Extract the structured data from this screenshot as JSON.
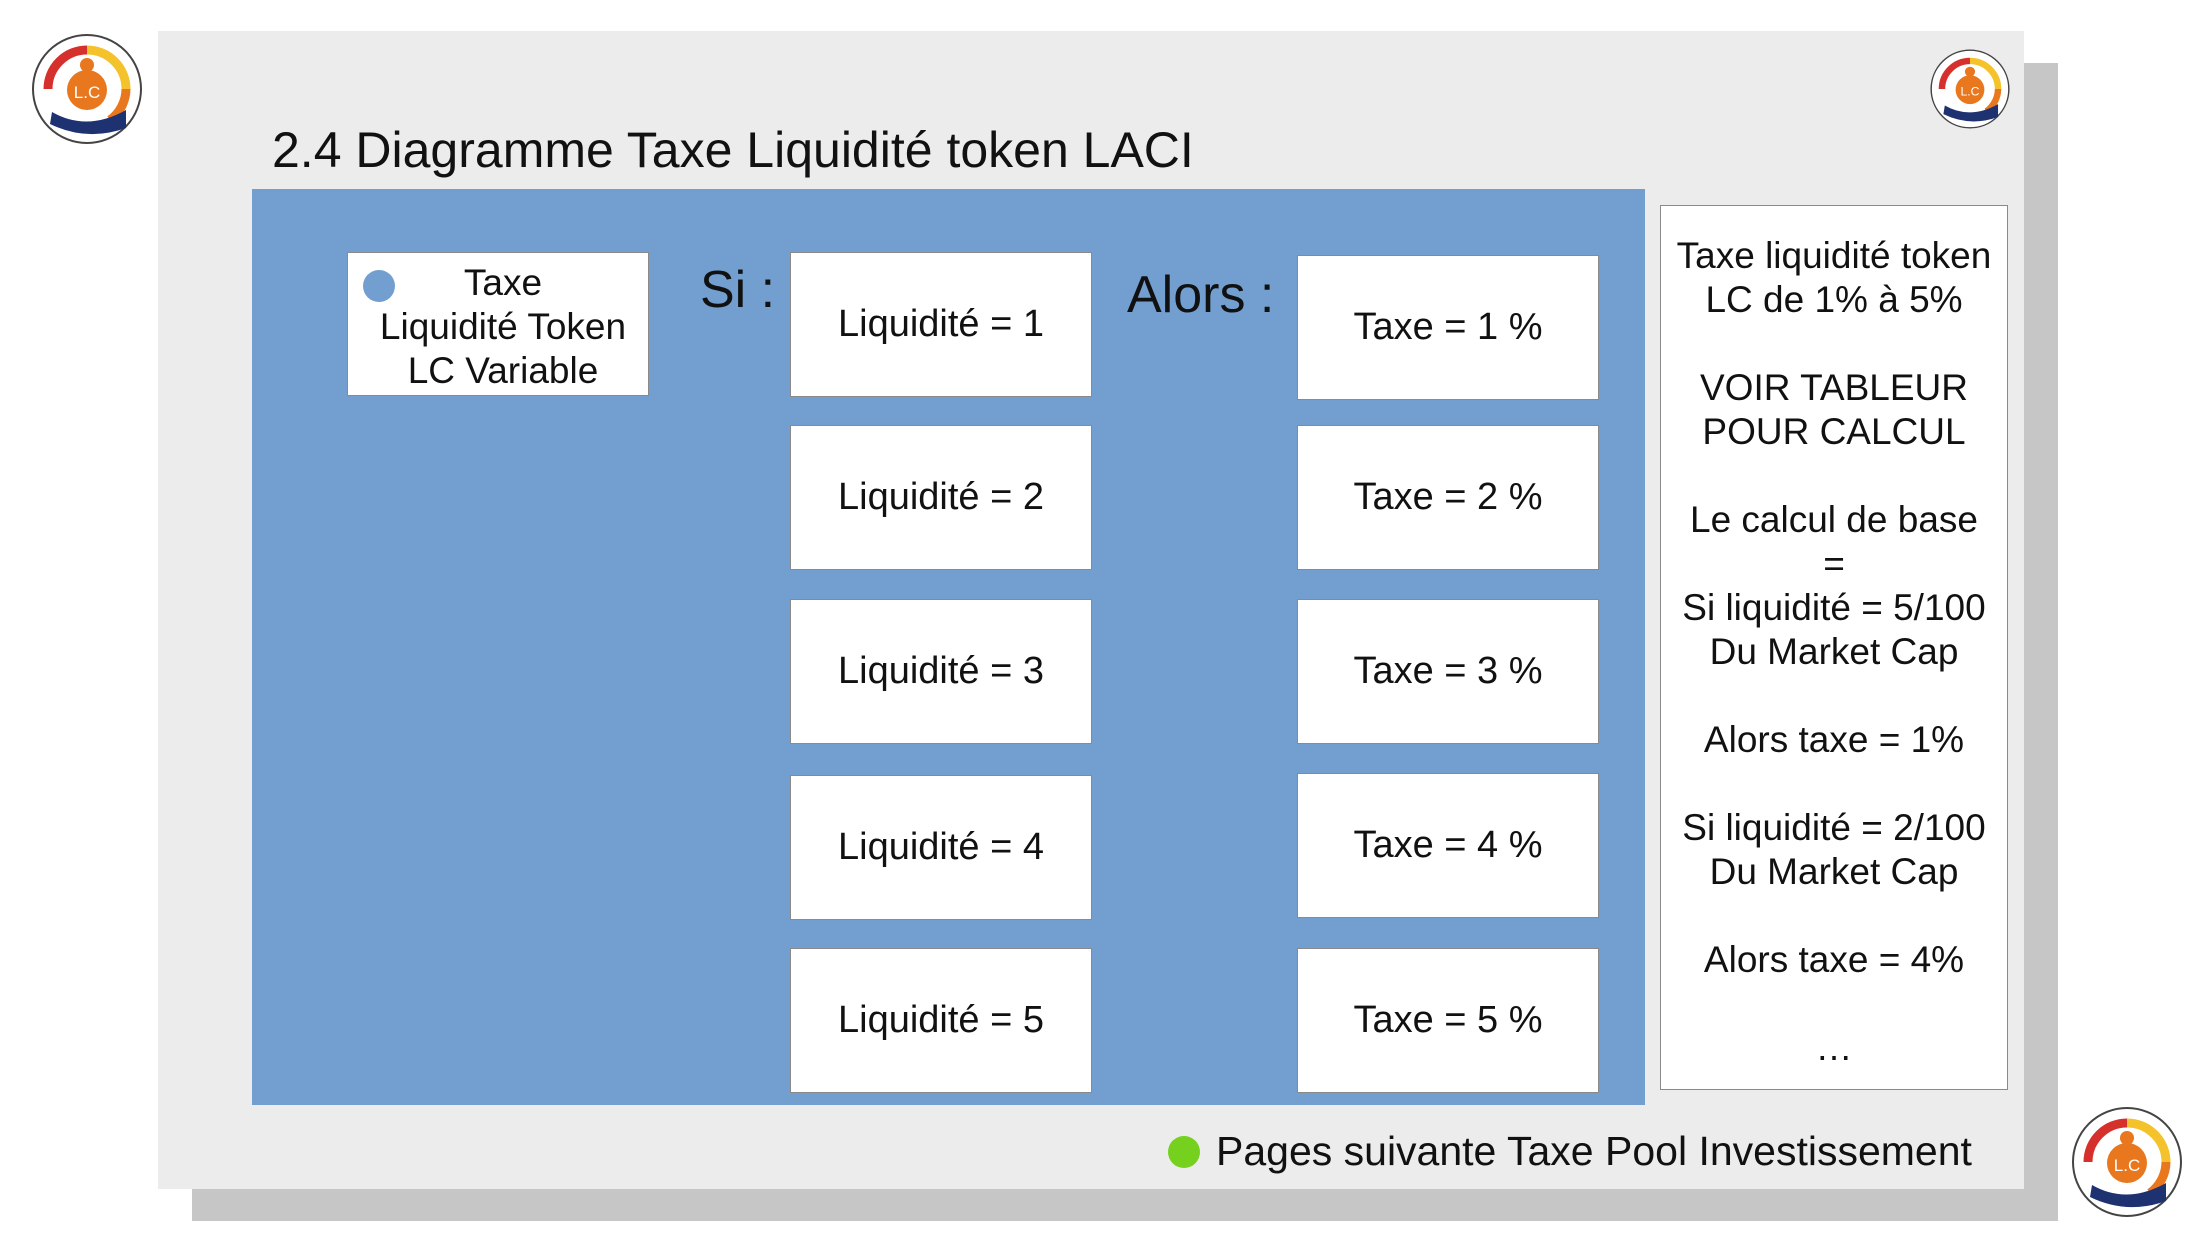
{
  "slide": {
    "title": "2.4 Diagramme Taxe Liquidité token LACI",
    "legend": {
      "lines": [
        "Taxe",
        "Liquidité Token",
        "LC Variable"
      ],
      "dot_color": "#729fcf"
    },
    "si_label": "Si :",
    "alors_label": "Alors :",
    "liquidity_boxes": [
      "Liquidité = 1",
      "Liquidité = 2",
      "Liquidité = 3",
      "Liquidité = 4",
      "Liquidité = 5"
    ],
    "tax_boxes": [
      "Taxe = 1 %",
      "Taxe = 2 %",
      "Taxe = 3 %",
      "Taxe = 4 %",
      "Taxe = 5 %"
    ],
    "info_lines": [
      "Taxe liquidité token",
      "LC de 1% à 5%",
      "",
      "VOIR TABLEUR",
      "POUR CALCUL",
      "",
      "Le calcul de base",
      "=",
      "Si liquidité = 5/100",
      "Du Market Cap",
      "",
      "Alors taxe = 1%",
      "",
      "Si liquidité = 2/100",
      "Du Market Cap",
      "",
      "Alors taxe = 4%",
      "",
      "…"
    ],
    "footer": {
      "text": "Pages suivante Taxe Pool Investissement",
      "dot_color": "#76d11f"
    },
    "logo_text": "L.C"
  },
  "colors": {
    "panel": "#729fcf",
    "slide_bg": "#ececec",
    "shadow": "#c6c6c6",
    "logo_orange": "#e8771e",
    "logo_red": "#d6302c",
    "logo_yellow": "#f4c22a",
    "logo_navy": "#1e3272"
  }
}
